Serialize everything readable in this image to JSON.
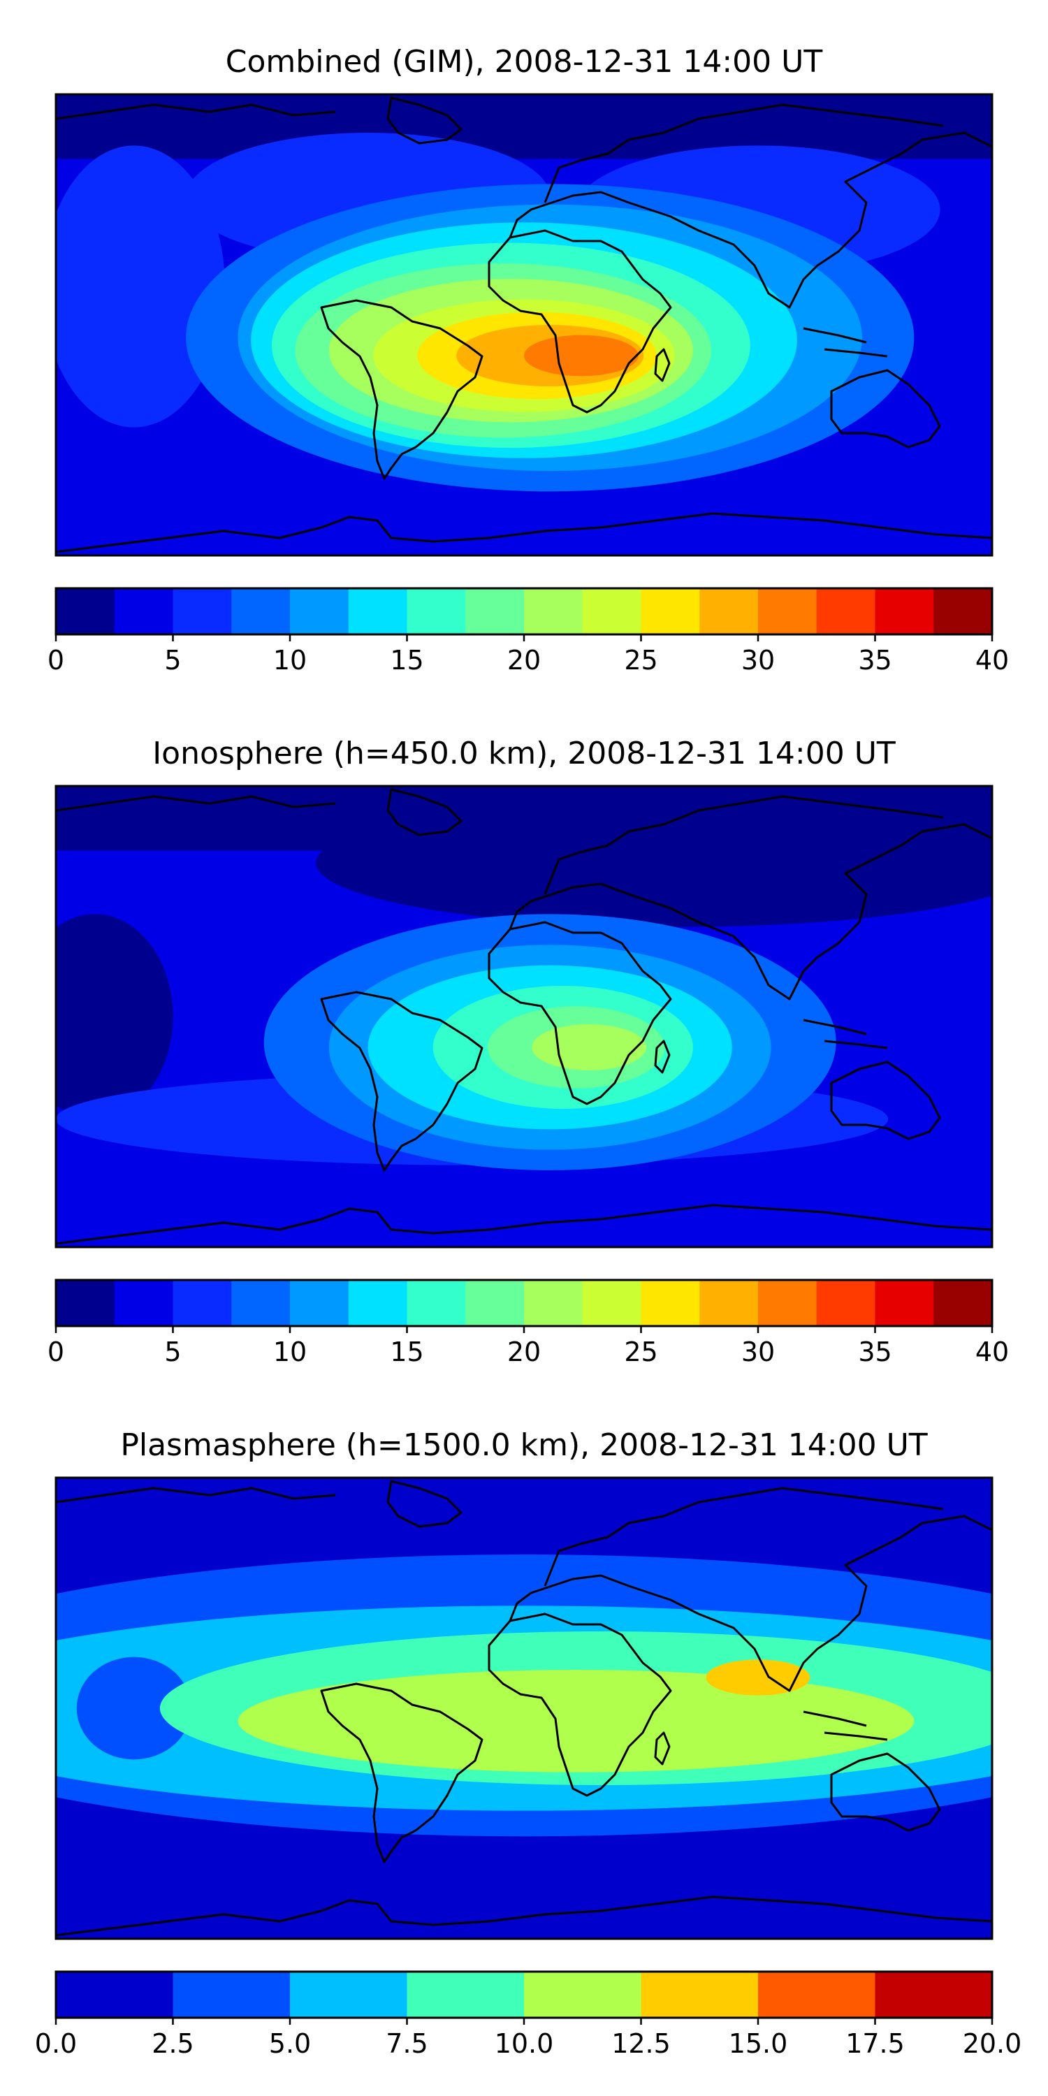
{
  "charts": [
    {
      "title": "Combined (GIM), 2008-12-31 14:00 UT",
      "colors": [
        "#00008f",
        "#0000e6",
        "#0a2bff",
        "#0066ff",
        "#0099ff",
        "#00e1ff",
        "#33ffcc",
        "#66ff99",
        "#a6ff5c",
        "#ccff33",
        "#ffe600",
        "#ffb000",
        "#ff7a00",
        "#ff3b00",
        "#e60000",
        "#990000"
      ],
      "ticks": [
        "0",
        "5",
        "10",
        "15",
        "20",
        "25",
        "30",
        "35",
        "40"
      ],
      "range": [
        0,
        40
      ],
      "base_level": 1,
      "blobs": [
        {
          "lon": -150,
          "lat": 15,
          "rx": 35,
          "ry": 55,
          "level": 2
        },
        {
          "lon": -60,
          "lat": 50,
          "rx": 70,
          "ry": 25,
          "level": 2
        },
        {
          "lon": 90,
          "lat": 45,
          "rx": 70,
          "ry": 25,
          "level": 2
        },
        {
          "lon": 10,
          "lat": -5,
          "rx": 140,
          "ry": 60,
          "level": 3
        },
        {
          "lon": 10,
          "lat": -5,
          "rx": 120,
          "ry": 52,
          "level": 4
        },
        {
          "lon": 0,
          "lat": -6,
          "rx": 105,
          "ry": 46,
          "level": 5
        },
        {
          "lon": -5,
          "lat": -8,
          "rx": 92,
          "ry": 40,
          "level": 6
        },
        {
          "lon": -8,
          "lat": -10,
          "rx": 80,
          "ry": 34,
          "level": 7
        },
        {
          "lon": -5,
          "lat": -10,
          "rx": 70,
          "ry": 28,
          "level": 8
        },
        {
          "lon": 0,
          "lat": -12,
          "rx": 58,
          "ry": 22,
          "level": 9
        },
        {
          "lon": 5,
          "lat": -12,
          "rx": 46,
          "ry": 17,
          "level": 10
        },
        {
          "lon": 10,
          "lat": -12,
          "rx": 36,
          "ry": 12,
          "level": 11
        },
        {
          "lon": 22,
          "lat": -12,
          "rx": 22,
          "ry": 8,
          "level": 12
        }
      ]
    },
    {
      "title": "Ionosphere  (h=450.0 km), 2008-12-31 14:00 UT",
      "colors": [
        "#00008f",
        "#0000e6",
        "#0a2bff",
        "#0066ff",
        "#0099ff",
        "#00e1ff",
        "#33ffcc",
        "#66ff99",
        "#a6ff5c",
        "#ccff33",
        "#ffe600",
        "#ffb000",
        "#ff7a00",
        "#ff3b00",
        "#e60000",
        "#990000"
      ],
      "ticks": [
        "0",
        "5",
        "10",
        "15",
        "20",
        "25",
        "30",
        "35",
        "40"
      ],
      "range": [
        0,
        40
      ],
      "base_level": 1,
      "blobs": [
        {
          "lon": -165,
          "lat": 0,
          "rx": 30,
          "ry": 40,
          "level": 0
        },
        {
          "lon": 60,
          "lat": 60,
          "rx": 140,
          "ry": 25,
          "level": 0
        },
        {
          "lon": -20,
          "lat": -40,
          "rx": 160,
          "ry": 18,
          "level": 2
        },
        {
          "lon": 10,
          "lat": -10,
          "rx": 110,
          "ry": 50,
          "level": 3
        },
        {
          "lon": 10,
          "lat": -12,
          "rx": 85,
          "ry": 40,
          "level": 4
        },
        {
          "lon": 10,
          "lat": -12,
          "rx": 70,
          "ry": 32,
          "level": 5
        },
        {
          "lon": 15,
          "lat": -12,
          "rx": 50,
          "ry": 24,
          "level": 6
        },
        {
          "lon": 20,
          "lat": -12,
          "rx": 34,
          "ry": 16,
          "level": 7
        },
        {
          "lon": 25,
          "lat": -12,
          "rx": 22,
          "ry": 9,
          "level": 8
        }
      ]
    },
    {
      "title": "Plasmasphere (h=1500.0 km), 2008-12-31 14:00 UT",
      "colors": [
        "#0000cc",
        "#0050ff",
        "#00bfff",
        "#40ffb8",
        "#b0ff4d",
        "#ffcc00",
        "#ff5a00",
        "#c40000"
      ],
      "ticks": [
        "0.0",
        "2.5",
        "5.0",
        "7.5",
        "10.0",
        "12.5",
        "15.0",
        "17.5",
        "20.0"
      ],
      "range": [
        0,
        20
      ],
      "base_level": 0,
      "blobs": [
        {
          "lon": 0,
          "lat": 5,
          "rx": 260,
          "ry": 55,
          "level": 1
        },
        {
          "lon": 0,
          "lat": 0,
          "rx": 240,
          "ry": 40,
          "level": 2
        },
        {
          "lon": -150,
          "lat": 0,
          "rx": 22,
          "ry": 20,
          "level": 1
        },
        {
          "lon": 30,
          "lat": 0,
          "rx": 170,
          "ry": 30,
          "level": 3
        },
        {
          "lon": 20,
          "lat": -5,
          "rx": 130,
          "ry": 20,
          "level": 4
        },
        {
          "lon": 90,
          "lat": 12,
          "rx": 20,
          "ry": 7,
          "level": 5
        }
      ]
    }
  ]
}
